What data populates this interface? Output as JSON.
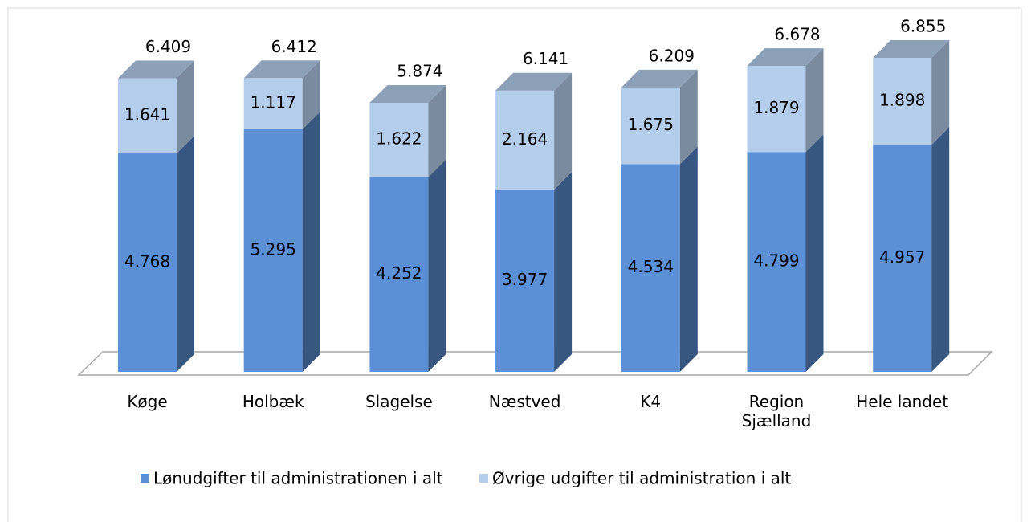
{
  "chart_data": {
    "type": "bar3d_stacked",
    "categories": [
      "Køge",
      "Holbæk",
      "Slagelse",
      "Næstved",
      "K4",
      "Region Sjælland",
      "Hele landet"
    ],
    "series": [
      {
        "name": "Lønudgifter til administrationen i alt",
        "color": "#5b8fd6",
        "values": [
          4.768,
          5.295,
          4.252,
          3.977,
          4.534,
          4.799,
          4.957
        ]
      },
      {
        "name": "Øvrige udgifter til administration i alt",
        "color": "#b4cdea",
        "values": [
          1.641,
          1.117,
          1.622,
          2.164,
          1.675,
          1.879,
          1.898
        ]
      }
    ],
    "totals": [
      6.409,
      6.412,
      5.874,
      6.141,
      6.209,
      6.678,
      6.855
    ],
    "legend": "bottom"
  }
}
